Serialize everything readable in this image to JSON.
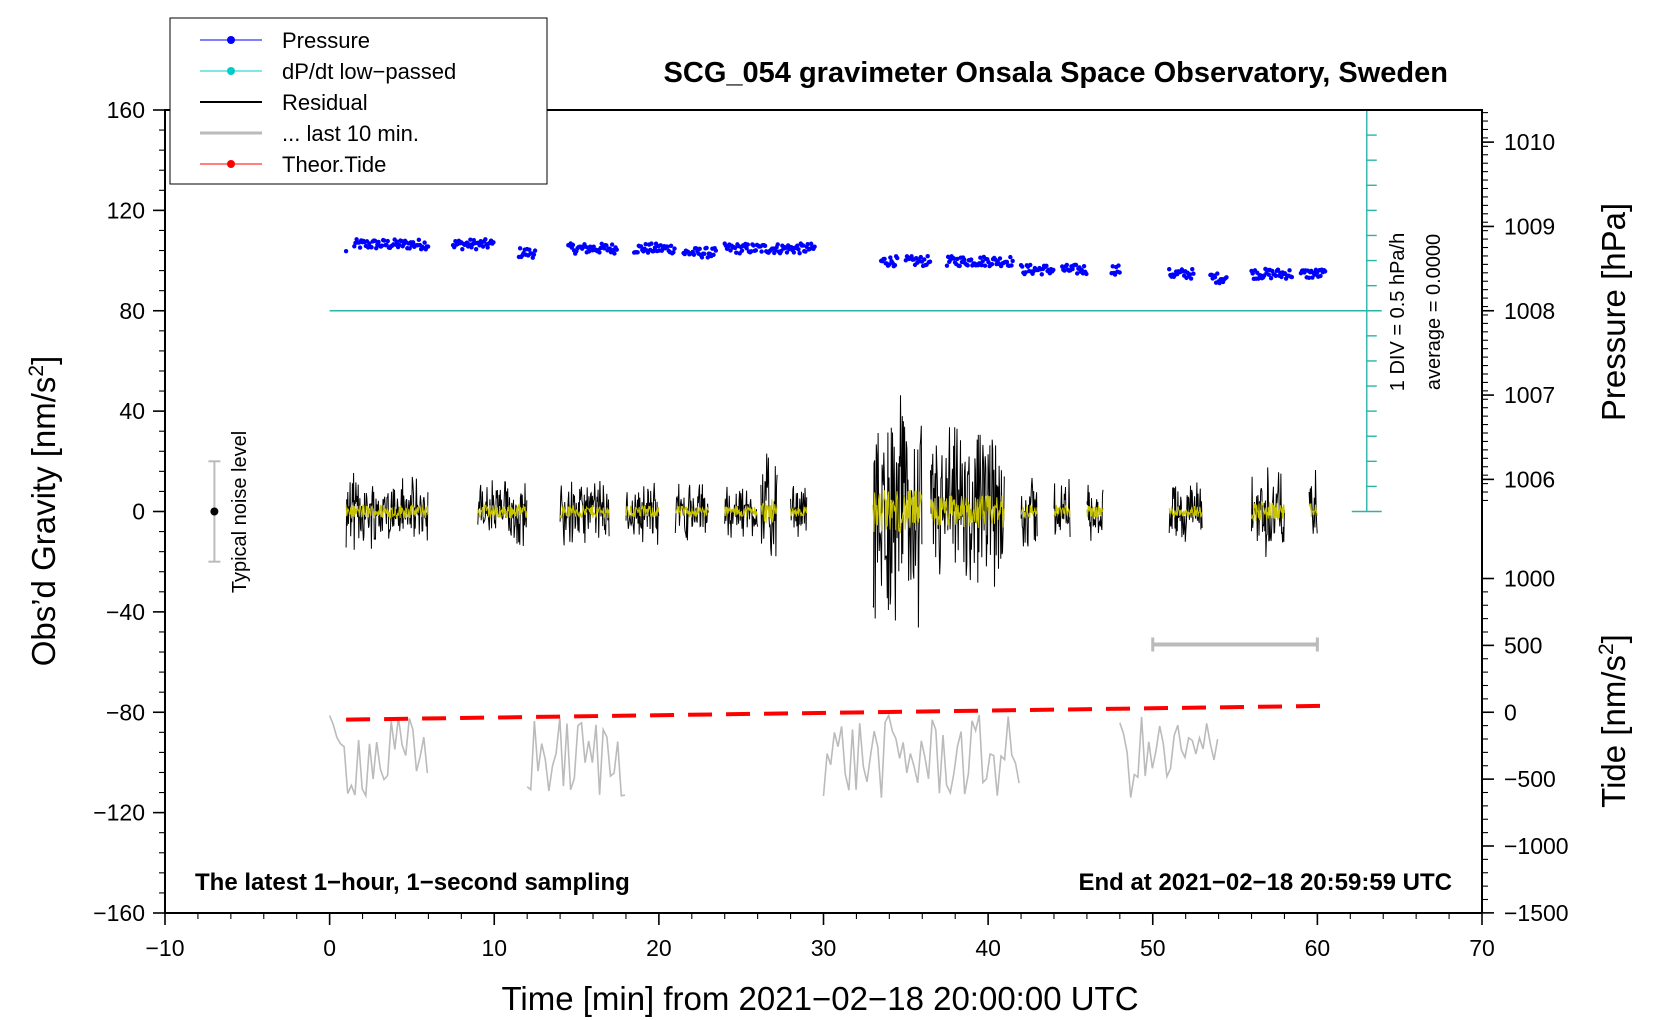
{
  "chart_data": {
    "type": "line",
    "title": "SCG_054 gravimeter Onsala Space Observatory, Sweden",
    "xlabel": "Time [min] from 2021−02−18 20:00:00 UTC",
    "ylabel_main": "Obs’d Gravity [nm/s",
    "ylabel_sup": "2",
    "ylabel_close": "]",
    "ylabel_pressure": "Pressure [hPa]",
    "ylabel_tide": "Tide [nm/s",
    "xlim": [
      -10,
      70
    ],
    "ylim": [
      -160,
      160
    ],
    "x_ticks": [
      "−10",
      "0",
      "10",
      "20",
      "30",
      "40",
      "50",
      "60",
      "70"
    ],
    "y_ticks": [
      "160",
      "120",
      "80",
      "40",
      "0",
      "−40",
      "−80",
      "−120",
      "−160"
    ],
    "pressure_ticks": [
      "1010",
      "1009",
      "1008",
      "1007",
      "1006"
    ],
    "tide_ticks": [
      "1000",
      "500",
      "0",
      "−500",
      "−1000",
      "−1500"
    ],
    "legend": [
      {
        "label": "Pressure",
        "color": "#0000ff",
        "marker": true
      },
      {
        "label": "dP/dt low−passed",
        "color": "#00cccc",
        "marker": true
      },
      {
        "label": "Residual",
        "color": "#000000",
        "marker": false
      },
      {
        "label": "... last 10 min.",
        "color": "#bbbbbb",
        "marker": false
      },
      {
        "label": "Theor.Tide",
        "color": "#ff0000",
        "marker": true
      }
    ],
    "annotations": {
      "noise_label": "Typical noise level",
      "noise_range": [
        -20,
        20
      ],
      "noise_x": -7,
      "dpdt_div": "1 DIV = 0.5 hPa/h",
      "dpdt_avg": "average = 0.0000",
      "bottom_left": "The latest 1−hour, 1−second sampling",
      "bottom_right": "End at 2021−02−18 20:59:59 UTC"
    },
    "series": {
      "pressure_hPa": {
        "segments": [
          [
            1,
            1
          ],
          [
            1.5,
            6
          ],
          [
            7.5,
            10
          ],
          [
            11.5,
            12.5
          ],
          [
            14.5,
            17.5
          ],
          [
            18.5,
            21
          ],
          [
            21.5,
            23.5
          ],
          [
            24,
            29.5
          ],
          [
            33.5,
            34.5
          ],
          [
            35,
            36.5
          ],
          [
            37.5,
            41.5
          ],
          [
            42,
            44
          ],
          [
            44.5,
            46
          ],
          [
            47.5,
            48
          ],
          [
            51,
            52.5
          ],
          [
            53.5,
            54.5
          ],
          [
            56,
            58.5
          ],
          [
            59,
            60.5
          ]
        ],
        "levels": [
          1008.7,
          1008.8,
          1008.8,
          1008.7,
          1008.75,
          1008.75,
          1008.7,
          1008.75,
          1008.6,
          1008.6,
          1008.6,
          1008.5,
          1008.5,
          1008.5,
          1008.45,
          1008.4,
          1008.45,
          1008.45
        ]
      },
      "dpdt_lowpassed": {
        "x": [
          0,
          63
        ],
        "y": [
          80,
          80
        ]
      },
      "residual_bursts": [
        {
          "x": [
            1,
            6
          ],
          "amp": 16
        },
        {
          "x": [
            9,
            12
          ],
          "amp": 16
        },
        {
          "x": [
            14,
            17
          ],
          "amp": 15
        },
        {
          "x": [
            18,
            20
          ],
          "amp": 14
        },
        {
          "x": [
            21,
            23
          ],
          "amp": 13
        },
        {
          "x": [
            24,
            26
          ],
          "amp": 13
        },
        {
          "x": [
            26.2,
            27.2
          ],
          "amp": 28
        },
        {
          "x": [
            28,
            29
          ],
          "amp": 12
        },
        {
          "x": [
            33,
            36
          ],
          "amp": 50
        },
        {
          "x": [
            36.5,
            41
          ],
          "amp": 38
        },
        {
          "x": [
            42,
            43
          ],
          "amp": 18
        },
        {
          "x": [
            44,
            45
          ],
          "amp": 16
        },
        {
          "x": [
            46,
            47
          ],
          "amp": 14
        },
        {
          "x": [
            51,
            53
          ],
          "amp": 14
        },
        {
          "x": [
            56,
            58
          ],
          "amp": 22
        },
        {
          "x": [
            59.5,
            60
          ],
          "amp": 18
        }
      ],
      "last10_bar": {
        "x": [
          50,
          60
        ],
        "y": -53
      },
      "last10_segments": [
        [
          0,
          6
        ],
        [
          12,
          18
        ],
        [
          30,
          42
        ],
        [
          48,
          54
        ]
      ],
      "theor_tide_nm_s2": {
        "x": [
          1,
          60.5
        ],
        "y": [
          -55,
          48
        ]
      }
    }
  }
}
